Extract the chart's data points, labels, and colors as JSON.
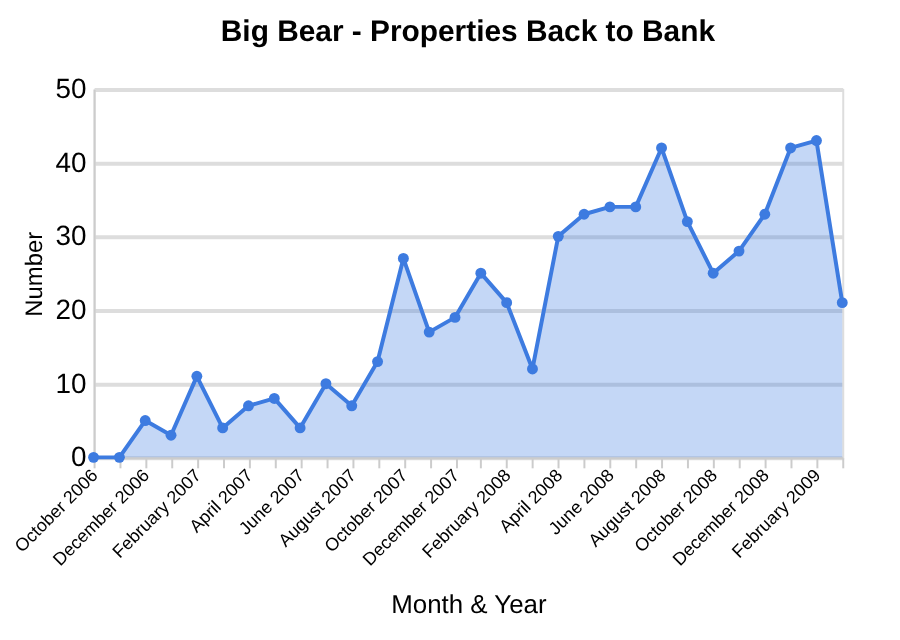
{
  "chart_data": {
    "type": "area",
    "title": "Big Bear - Properties Back to Bank",
    "xlabel": "Month & Year",
    "ylabel": "Number",
    "categories": [
      "October 2006",
      null,
      "December 2006",
      null,
      "February 2007",
      null,
      "April 2007",
      null,
      "June 2007",
      null,
      "August 2007",
      null,
      "October 2007",
      null,
      "December 2007",
      null,
      "February 2008",
      null,
      "April 2008",
      null,
      "June 2008",
      null,
      "August 2008",
      null,
      "October 2008",
      null,
      "December 2008",
      null,
      "February 2009",
      null
    ],
    "series": [
      {
        "color": "#3d7be0",
        "values": [
          0,
          0,
          5,
          3,
          11,
          4,
          7,
          8,
          4,
          10,
          7,
          13,
          27,
          17,
          19,
          25,
          21,
          12,
          30,
          33,
          34,
          34,
          42,
          32,
          25,
          28,
          33,
          42,
          43,
          21
        ]
      }
    ],
    "ylim": [
      0,
      50
    ],
    "yticks": [
      0,
      10,
      20,
      30,
      40,
      50
    ],
    "grid": "y",
    "marker": "circle"
  }
}
